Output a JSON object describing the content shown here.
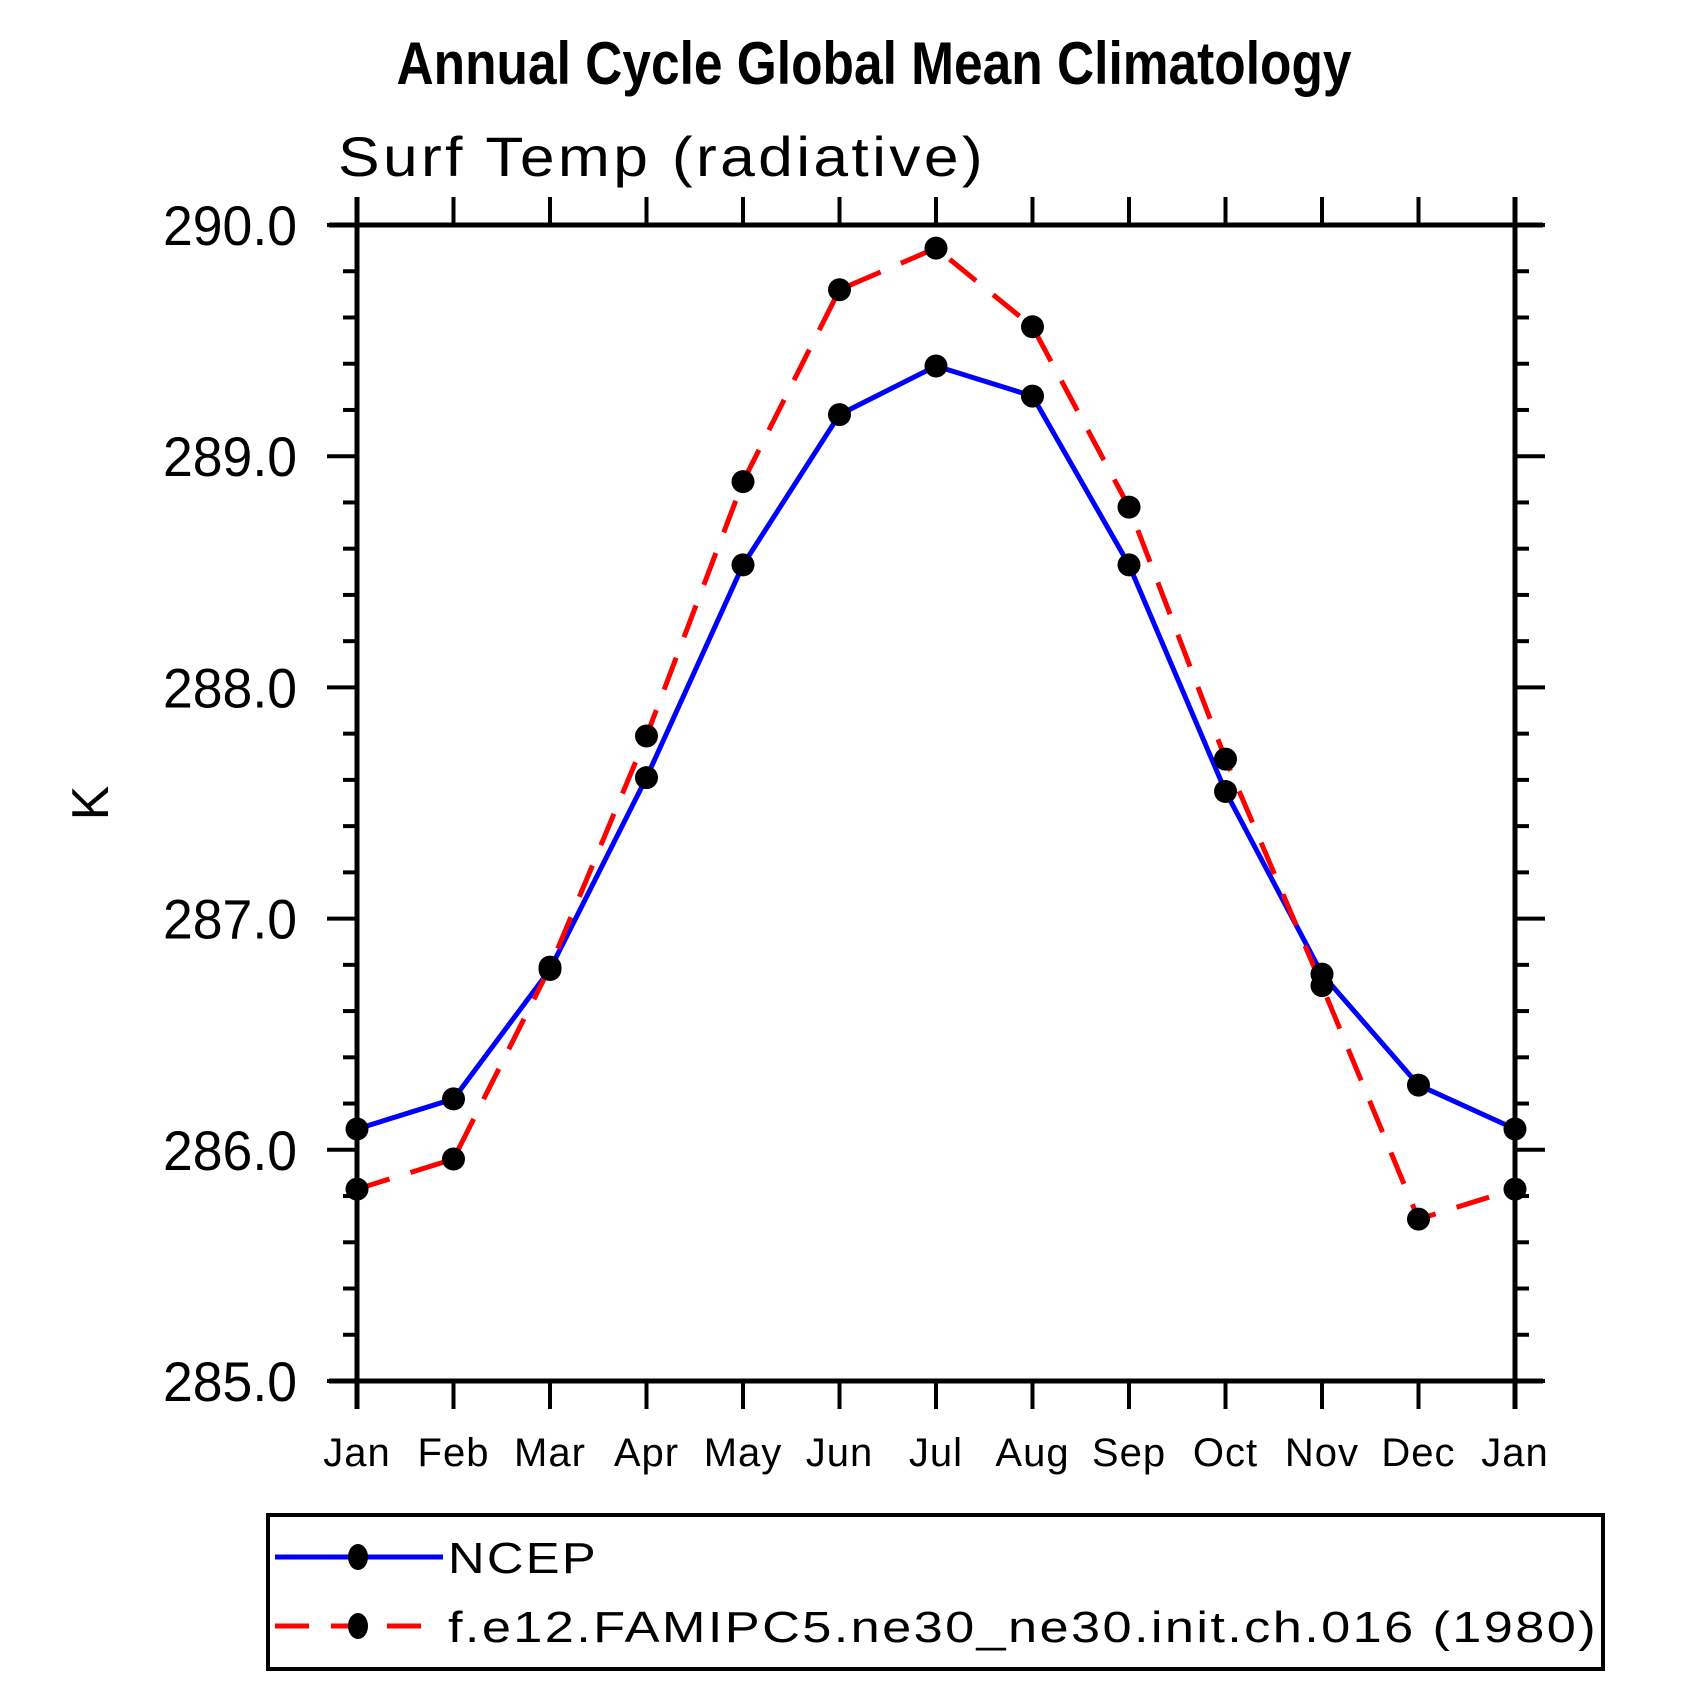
{
  "page": {
    "background_color": "#ffffff",
    "text_color": "#000000"
  },
  "chart_data": {
    "type": "line",
    "title": "Annual Cycle Global Mean Climatology",
    "subtitle": "Surf Temp (radiative)",
    "ylabel": "K",
    "xlabel": "",
    "grid": false,
    "legend_position": "bottom",
    "categories": [
      "Jan",
      "Feb",
      "Mar",
      "Apr",
      "May",
      "Jun",
      "Jul",
      "Aug",
      "Sep",
      "Oct",
      "Nov",
      "Dec",
      "Jan"
    ],
    "y_axis": {
      "min": 285.0,
      "max": 290.0,
      "major_step": 1.0,
      "minor_step": 0.2,
      "tick_labels": [
        "285.0",
        "286.0",
        "287.0",
        "288.0",
        "289.0",
        "290.0"
      ]
    },
    "series": [
      {
        "name": "NCEP",
        "color": "#0000ff",
        "line_style": "solid",
        "marker": "filled-circle",
        "marker_color": "#000000",
        "values": [
          286.09,
          286.22,
          286.78,
          287.61,
          288.53,
          289.18,
          289.39,
          289.26,
          288.53,
          287.55,
          286.76,
          286.28,
          286.09
        ]
      },
      {
        "name": "f.e12.FAMIPC5.ne30_ne30.init.ch.016 (1980)",
        "color": "#ff0000",
        "line_style": "dashed",
        "marker": "filled-circle",
        "marker_color": "#000000",
        "values": [
          285.83,
          285.96,
          286.79,
          287.79,
          288.89,
          289.72,
          289.9,
          289.56,
          288.78,
          287.69,
          286.71,
          285.7,
          285.83
        ]
      }
    ]
  }
}
